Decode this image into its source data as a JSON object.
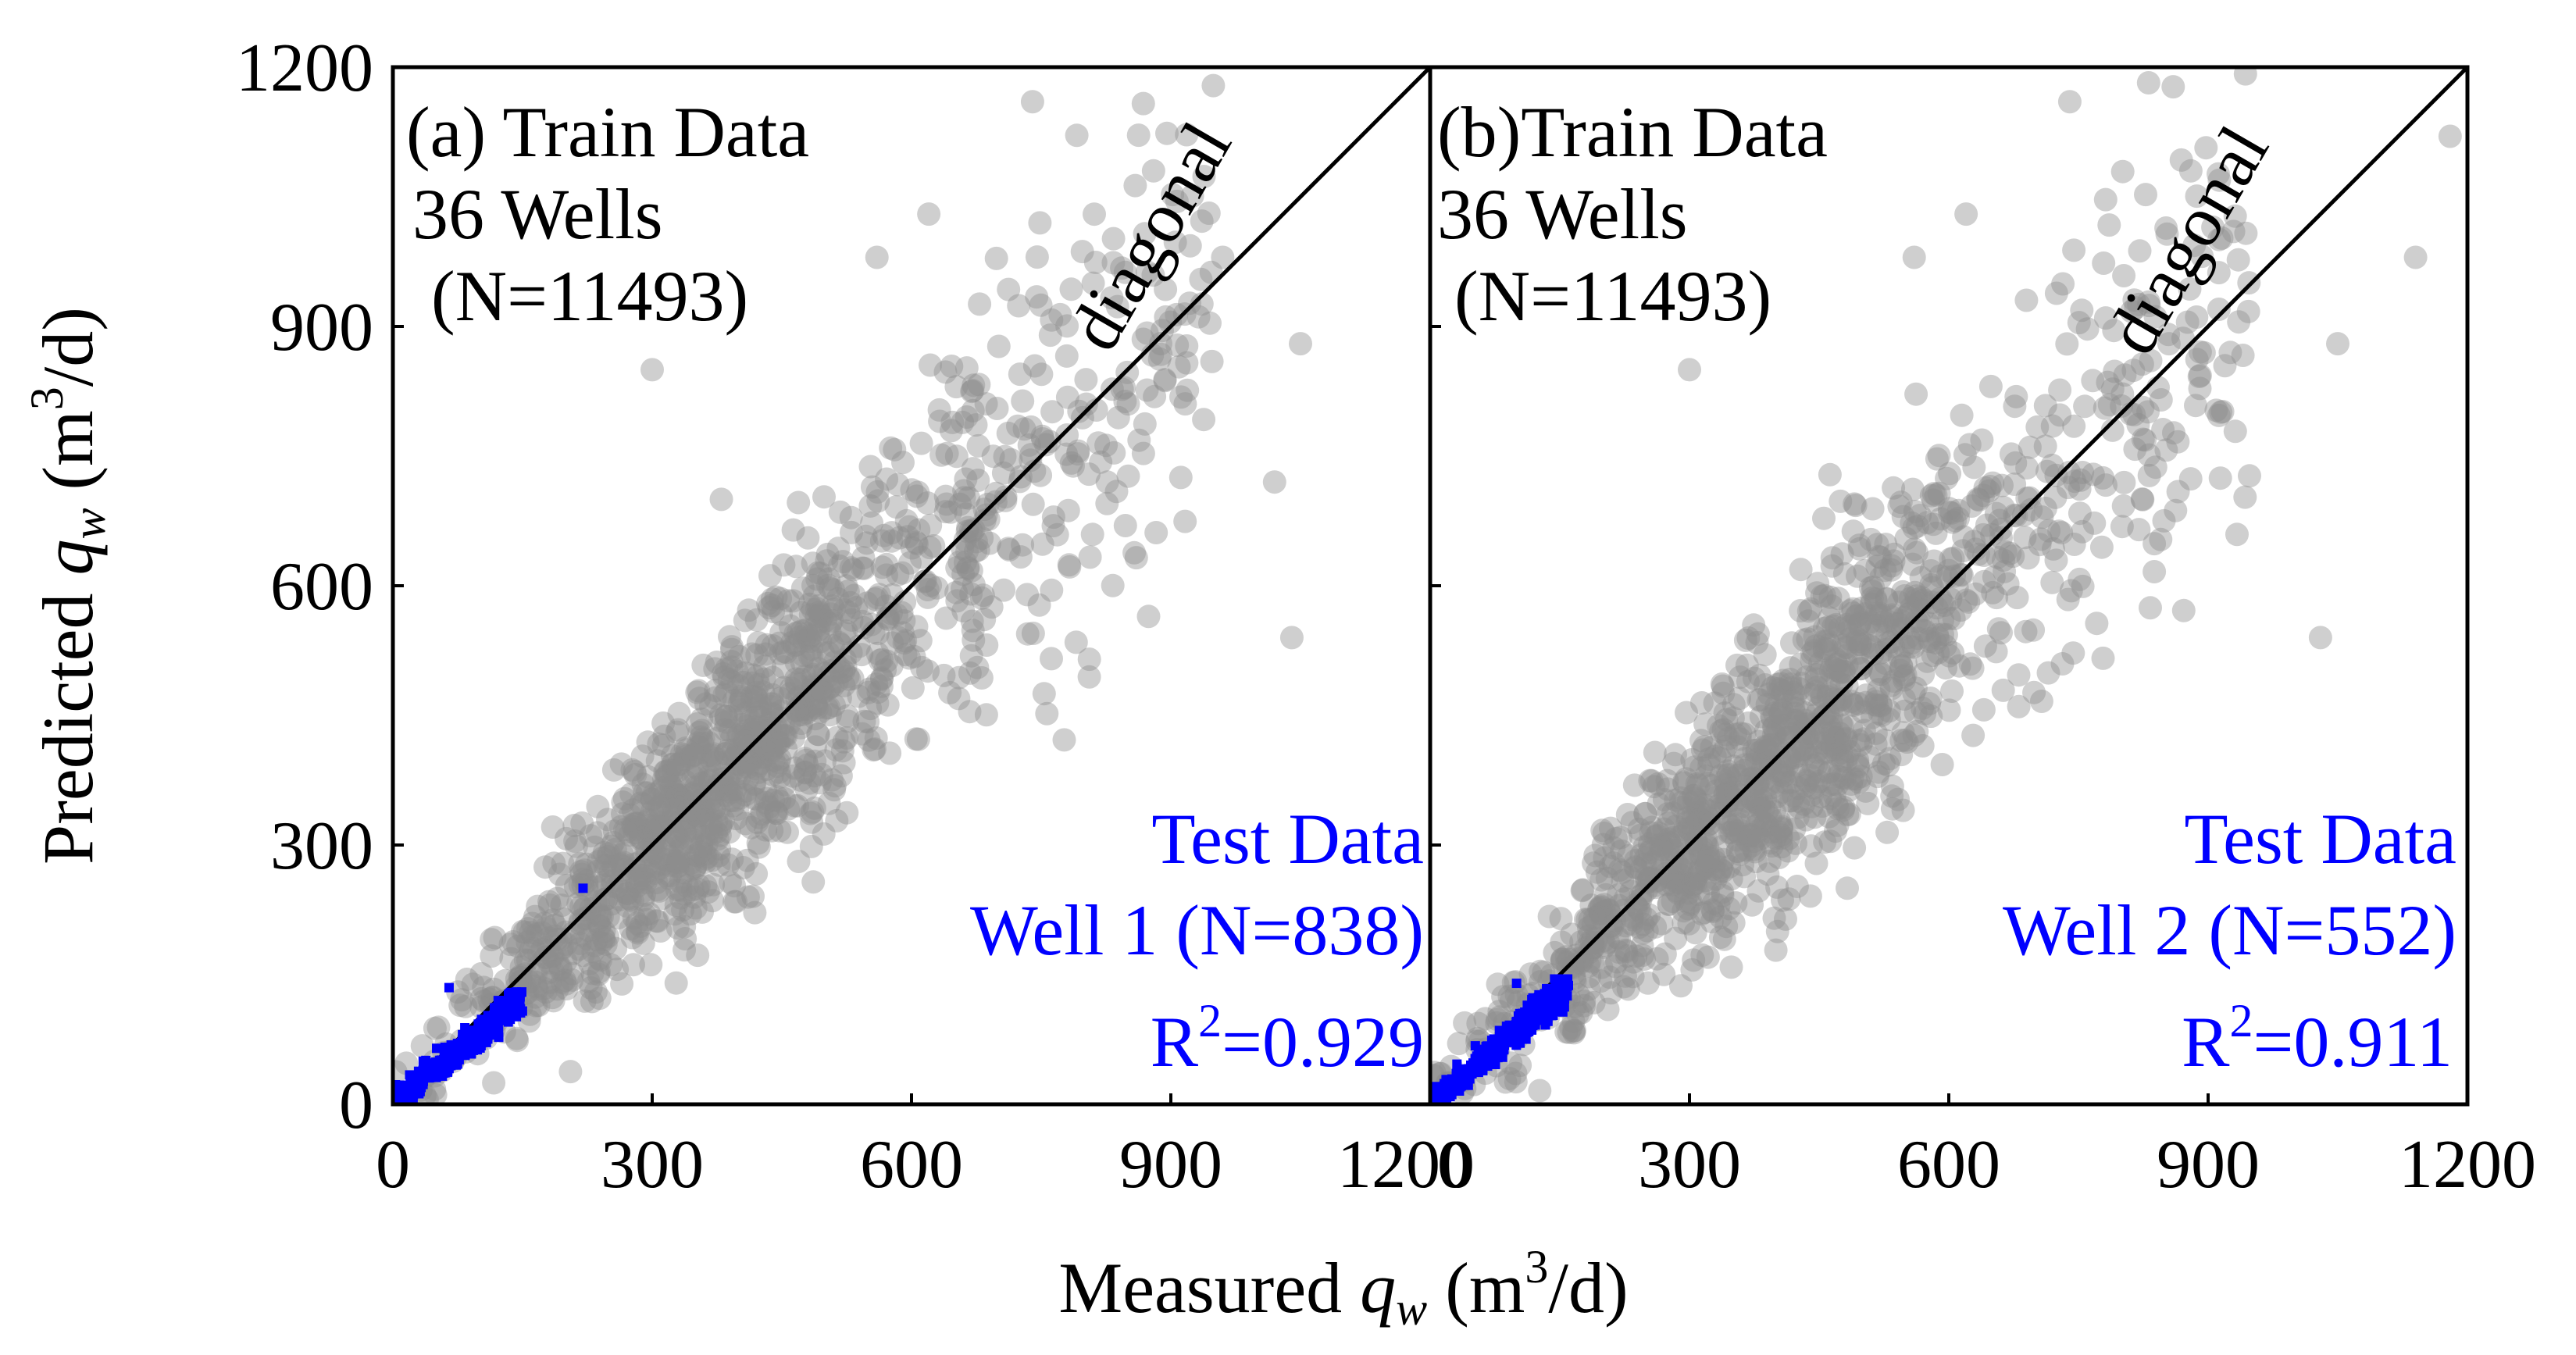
{
  "figure": {
    "xlabel_pre": "Measured ",
    "xlabel_var": "q",
    "xlabel_sub": "w",
    "xlabel_unit_open": " (m",
    "xlabel_sup": "3",
    "xlabel_unit_close": "/d)",
    "ylabel_pre": "Predicted ",
    "ylabel_var": "q",
    "ylabel_sub": "w",
    "ylabel_unit_open": " (m",
    "ylabel_sup": "3",
    "ylabel_unit_close": "/d)",
    "colors": {
      "train": "#8c8c8c",
      "test": "#0000ff",
      "diagonal": "#000000",
      "axes": "#000000"
    }
  },
  "chart_data": [
    {
      "type": "scatter",
      "panel": "(a)",
      "train_title": "(a) Train Data",
      "train_wells": "36 Wells",
      "train_n": "(N=11493)",
      "diagonal_label": "diagonal",
      "test_title": "Test Data",
      "test_well": "Well 1 (N=838)",
      "r2_prefix": "R",
      "r2_sup": "2",
      "r2_value": "=0.929",
      "xlim": [
        0,
        1200
      ],
      "ylim": [
        0,
        1200
      ],
      "xticks": [
        "0",
        "300",
        "600",
        "900",
        "1200"
      ],
      "yticks": [
        "0",
        "300",
        "600",
        "900",
        "1200"
      ],
      "series": [
        {
          "name": "Train Data",
          "n": 11493,
          "x_range": [
            0,
            1200
          ],
          "y_range": [
            0,
            1150
          ],
          "outliers": [
            [
              960,
              980
            ],
            [
              1040,
              540
            ],
            [
              1050,
              880
            ],
            [
              1020,
              720
            ],
            [
              620,
              1030
            ],
            [
              880,
              1080
            ],
            [
              740,
              1160
            ],
            [
              300,
              850
            ],
            [
              560,
              980
            ],
            [
              380,
              700
            ]
          ]
        },
        {
          "name": "Test Data",
          "n": 838,
          "x_range": [
            0,
            150
          ],
          "y_range": [
            0,
            130
          ],
          "outliers": [
            [
              220,
              250
            ],
            [
              65,
              135
            ]
          ]
        }
      ]
    },
    {
      "type": "scatter",
      "panel": "(b)",
      "train_title": "(b)Train Data",
      "train_wells": "36 Wells",
      "train_n": "(N=11493)",
      "diagonal_label": "diagonal",
      "test_title": "Test Data",
      "test_well": "Well 2 (N=552)",
      "r2_prefix": "R",
      "r2_sup": "2",
      "r2_value": "=0.911",
      "xlim": [
        0,
        1200
      ],
      "ylim": [
        0,
        1200
      ],
      "xticks": [
        "0",
        "300",
        "600",
        "900",
        "1200"
      ],
      "yticks": [
        "0",
        "300",
        "600",
        "900",
        "1200"
      ],
      "series": [
        {
          "name": "Train Data",
          "n": 11493,
          "x_range": [
            0,
            1200
          ],
          "y_range": [
            0,
            1150
          ],
          "outliers": [
            [
              1180,
              1120
            ],
            [
              1140,
              980
            ],
            [
              1030,
              540
            ],
            [
              1050,
              880
            ],
            [
              620,
              1030
            ],
            [
              880,
              1080
            ],
            [
              740,
              1160
            ],
            [
              300,
              850
            ],
            [
              560,
              980
            ]
          ]
        },
        {
          "name": "Test Data",
          "n": 552,
          "x_range": [
            0,
            160
          ],
          "y_range": [
            0,
            145
          ],
          "outliers": [
            [
              100,
              140
            ]
          ]
        }
      ]
    }
  ]
}
